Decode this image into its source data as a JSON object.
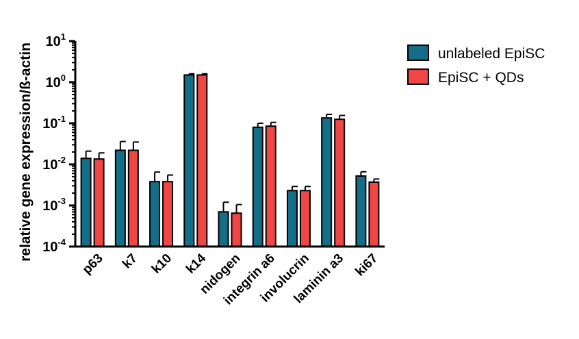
{
  "chart_data": {
    "type": "bar",
    "ylabel": "relative gene expression/ß-actin",
    "xlabel": "",
    "yscale": "log",
    "ylim": [
      0.0001,
      10
    ],
    "ytick_values": [
      0.0001,
      0.001,
      0.01,
      0.1,
      1,
      10
    ],
    "ytick_labels": [
      {
        "base": "10",
        "exp": "-4"
      },
      {
        "base": "10",
        "exp": "-3"
      },
      {
        "base": "10",
        "exp": "-2"
      },
      {
        "base": "10",
        "exp": "-1"
      },
      {
        "base": "10",
        "exp": "0"
      },
      {
        "base": "10",
        "exp": "1"
      }
    ],
    "categories": [
      "p63",
      "k7",
      "k10",
      "k14",
      "nidogen",
      "integrin a6",
      "involucrin",
      "laminin a3",
      "ki67"
    ],
    "series": [
      {
        "name": "unlabeled EpiSC",
        "color": "#146E87",
        "values": [
          0.014,
          0.022,
          0.0038,
          1.5,
          0.0007,
          0.08,
          0.0023,
          0.135,
          0.0052
        ],
        "errors_upper": [
          0.021,
          0.036,
          0.0065,
          1.6,
          0.0012,
          0.1,
          0.0029,
          0.165,
          0.0066
        ]
      },
      {
        "name": "EpiSC + QDs",
        "color": "#F04646",
        "values": [
          0.0135,
          0.022,
          0.0038,
          1.5,
          0.00065,
          0.085,
          0.0023,
          0.125,
          0.0037
        ],
        "errors_upper": [
          0.019,
          0.035,
          0.0055,
          1.6,
          0.00105,
          0.105,
          0.0029,
          0.155,
          0.0044
        ]
      }
    ],
    "legend_position": "top-right",
    "grid": false
  }
}
